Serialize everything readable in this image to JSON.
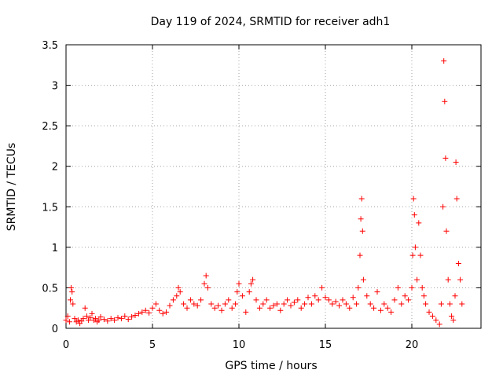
{
  "chart_data": {
    "type": "scatter",
    "title": "Day 119 of 2024, SRMTID for receiver adh1",
    "xlabel": "GPS time / hours",
    "ylabel": "SRMTID / TECUs",
    "xlim": [
      0,
      24
    ],
    "ylim": [
      0,
      3.5
    ],
    "xticks": [
      0,
      5,
      10,
      15,
      20
    ],
    "xtick_labels": [
      "0",
      "5",
      "10",
      "15",
      "20"
    ],
    "yticks": [
      0,
      0.5,
      1,
      1.5,
      2,
      2.5,
      3,
      3.5
    ],
    "ytick_labels": [
      "0",
      "0.5",
      "1",
      "1.5",
      "2",
      "2.5",
      "3",
      "3.5"
    ],
    "grid": true,
    "marker": "+",
    "color": "#ff0000",
    "series": [
      {
        "name": "SRMTID",
        "x": [
          0.0,
          0.1,
          0.2,
          0.25,
          0.3,
          0.35,
          0.4,
          0.5,
          0.6,
          0.7,
          0.8,
          0.9,
          1.0,
          1.1,
          1.2,
          1.3,
          1.4,
          1.5,
          1.6,
          1.7,
          1.8,
          1.9,
          2.0,
          2.2,
          2.4,
          2.6,
          2.8,
          3.0,
          3.2,
          3.4,
          3.6,
          3.8,
          4.0,
          4.2,
          4.4,
          4.6,
          4.8,
          5.0,
          5.2,
          5.4,
          5.6,
          5.8,
          6.0,
          6.2,
          6.4,
          6.5,
          6.6,
          6.8,
          7.0,
          7.2,
          7.4,
          7.6,
          7.8,
          8.0,
          8.1,
          8.2,
          8.4,
          8.6,
          8.8,
          9.0,
          9.2,
          9.4,
          9.6,
          9.8,
          9.9,
          10.0,
          10.2,
          10.4,
          10.6,
          10.7,
          10.8,
          11.0,
          11.2,
          11.4,
          11.6,
          11.8,
          12.0,
          12.2,
          12.4,
          12.6,
          12.8,
          13.0,
          13.2,
          13.4,
          13.6,
          13.8,
          14.0,
          14.2,
          14.4,
          14.6,
          14.8,
          15.0,
          15.2,
          15.4,
          15.6,
          15.8,
          16.0,
          16.2,
          16.4,
          16.6,
          16.8,
          16.9,
          17.0,
          17.05,
          17.1,
          17.15,
          17.2,
          17.4,
          17.6,
          17.8,
          18.0,
          18.2,
          18.4,
          18.6,
          18.8,
          19.0,
          19.2,
          19.4,
          19.6,
          19.8,
          20.0,
          20.05,
          20.1,
          20.15,
          20.2,
          20.3,
          20.4,
          20.5,
          20.6,
          20.7,
          20.8,
          21.0,
          21.2,
          21.4,
          21.6,
          21.7,
          21.8,
          21.85,
          21.9,
          21.95,
          22.0,
          22.1,
          22.2,
          22.3,
          22.4,
          22.5,
          22.55,
          22.6,
          22.7,
          22.8,
          22.9
        ],
        "values": [
          0.1,
          0.15,
          0.08,
          0.35,
          0.5,
          0.45,
          0.3,
          0.12,
          0.08,
          0.1,
          0.06,
          0.09,
          0.12,
          0.25,
          0.15,
          0.1,
          0.13,
          0.18,
          0.1,
          0.12,
          0.08,
          0.1,
          0.14,
          0.11,
          0.09,
          0.12,
          0.1,
          0.13,
          0.12,
          0.15,
          0.11,
          0.14,
          0.16,
          0.18,
          0.2,
          0.22,
          0.19,
          0.25,
          0.3,
          0.22,
          0.18,
          0.2,
          0.28,
          0.35,
          0.4,
          0.5,
          0.45,
          0.3,
          0.25,
          0.35,
          0.3,
          0.28,
          0.35,
          0.55,
          0.65,
          0.5,
          0.3,
          0.25,
          0.28,
          0.22,
          0.3,
          0.35,
          0.25,
          0.3,
          0.45,
          0.55,
          0.4,
          0.2,
          0.45,
          0.55,
          0.6,
          0.35,
          0.25,
          0.3,
          0.35,
          0.25,
          0.28,
          0.3,
          0.22,
          0.3,
          0.35,
          0.28,
          0.32,
          0.35,
          0.25,
          0.3,
          0.38,
          0.3,
          0.4,
          0.35,
          0.5,
          0.38,
          0.35,
          0.3,
          0.33,
          0.28,
          0.35,
          0.3,
          0.25,
          0.38,
          0.3,
          0.5,
          0.9,
          1.35,
          1.6,
          1.2,
          0.6,
          0.4,
          0.3,
          0.25,
          0.45,
          0.22,
          0.3,
          0.25,
          0.2,
          0.35,
          0.5,
          0.3,
          0.4,
          0.35,
          0.5,
          0.9,
          1.6,
          1.4,
          1.0,
          0.6,
          1.3,
          0.9,
          0.5,
          0.4,
          0.3,
          0.2,
          0.15,
          0.1,
          0.05,
          0.3,
          1.5,
          3.3,
          2.8,
          2.1,
          1.2,
          0.6,
          0.3,
          0.15,
          0.1,
          0.4,
          2.05,
          1.6,
          0.8,
          0.6,
          0.3
        ]
      }
    ]
  }
}
